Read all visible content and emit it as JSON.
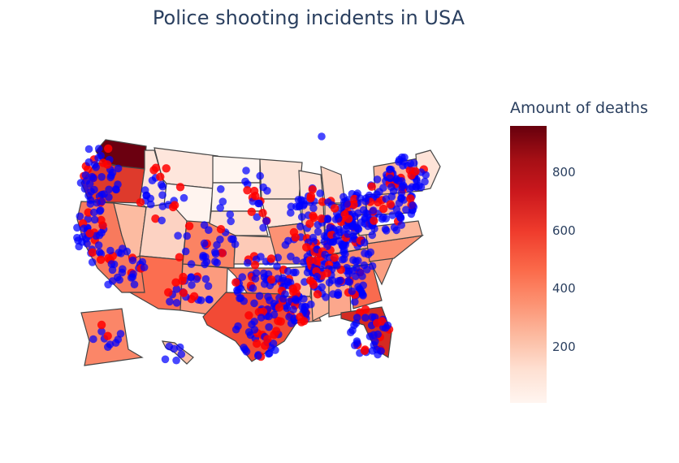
{
  "title": "Police shooting incidents in USA",
  "legend": {
    "title": "Amount of deaths",
    "ticks": [
      "800",
      "600",
      "400",
      "200"
    ],
    "color_scale": [
      "#fff5f0",
      "#fee0d2",
      "#fcbba1",
      "#fc9272",
      "#fb6a4a",
      "#ef3b2c",
      "#cb181d",
      "#a50f15",
      "#67000d"
    ],
    "range": [
      0,
      960
    ]
  },
  "colors": {
    "state_border": "#444444",
    "incident_marker": "#0000ff",
    "hotspot_marker": "#ff0000"
  },
  "map_type": "choropleth of US states with incident scatter markers",
  "scale_type": "continuous"
}
